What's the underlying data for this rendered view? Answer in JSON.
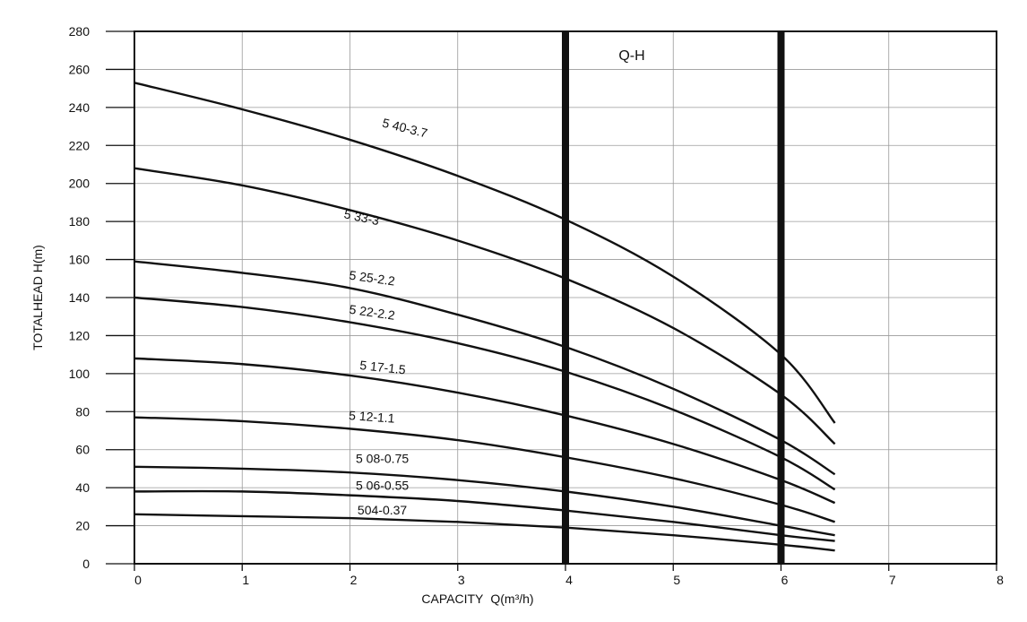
{
  "chart_data": {
    "type": "line",
    "title": "Q-H",
    "xlabel": "CAPACITY",
    "xlabel_suffix": "Q(m³/h)",
    "ylabel": "TOTALHEAD  H(m)",
    "xlim": [
      0,
      8
    ],
    "ylim": [
      0,
      280
    ],
    "x_ticks": [
      "0",
      "1",
      "2",
      "3",
      "4",
      "5",
      "6",
      "7",
      "8"
    ],
    "y_ticks": [
      "0",
      "20",
      "40",
      "60",
      "80",
      "100",
      "120",
      "140",
      "160",
      "180",
      "200",
      "220",
      "240",
      "260",
      "280"
    ],
    "grid": true,
    "highlight_x": [
      4,
      6
    ],
    "series": [
      {
        "name": "5 40-3.7",
        "label_x": 2.5,
        "label_y": 227,
        "label_rot": 14,
        "x": [
          0,
          1,
          2,
          3,
          4,
          5,
          6,
          6.5
        ],
        "y": [
          253,
          239,
          223,
          204,
          181,
          151,
          110,
          74
        ]
      },
      {
        "name": "5 33-3",
        "label_x": 2.1,
        "label_y": 180,
        "label_rot": 12,
        "x": [
          0,
          1,
          2,
          3,
          4,
          5,
          6,
          6.5
        ],
        "y": [
          208,
          199,
          186,
          170,
          150,
          124,
          89,
          63
        ]
      },
      {
        "name": "5 25-2.2",
        "label_x": 2.2,
        "label_y": 148,
        "label_rot": 8,
        "x": [
          0,
          1,
          2,
          3,
          4,
          5,
          6,
          6.5
        ],
        "y": [
          159,
          153,
          145,
          131,
          114,
          92,
          65,
          47
        ]
      },
      {
        "name": "5 22-2.2",
        "label_x": 2.2,
        "label_y": 130,
        "label_rot": 8,
        "x": [
          0,
          1,
          2,
          3,
          4,
          5,
          6,
          6.5
        ],
        "y": [
          140,
          135,
          127,
          116,
          101,
          81,
          56,
          39
        ]
      },
      {
        "name": "5 17-1.5",
        "label_x": 2.3,
        "label_y": 101,
        "label_rot": 6,
        "x": [
          0,
          1,
          2,
          3,
          4,
          5,
          6,
          6.5
        ],
        "y": [
          108,
          105,
          99,
          90,
          78,
          63,
          44,
          32
        ]
      },
      {
        "name": "5 12-1.1",
        "label_x": 2.2,
        "label_y": 75,
        "label_rot": 4,
        "x": [
          0,
          1,
          2,
          3,
          4,
          5,
          6,
          6.5
        ],
        "y": [
          77,
          75,
          71,
          65,
          56,
          45,
          31,
          22
        ]
      },
      {
        "name": "5 08-0.75",
        "label_x": 2.3,
        "label_y": 53,
        "label_rot": 0,
        "x": [
          0,
          1,
          2,
          3,
          4,
          5,
          6,
          6.5
        ],
        "y": [
          51,
          50,
          48,
          44,
          38,
          30,
          20,
          15
        ]
      },
      {
        "name": "5 06-0.55",
        "label_x": 2.3,
        "label_y": 39,
        "label_rot": 0,
        "x": [
          0,
          1,
          2,
          3,
          4,
          5,
          6,
          6.5
        ],
        "y": [
          38,
          38,
          36,
          33,
          28,
          22,
          15,
          12
        ]
      },
      {
        "name": "504-0.37",
        "label_x": 2.3,
        "label_y": 26,
        "label_rot": 0,
        "x": [
          0,
          1,
          2,
          3,
          4,
          5,
          6,
          6.5
        ],
        "y": [
          26,
          25,
          24,
          22,
          19,
          15,
          10,
          7
        ]
      }
    ]
  }
}
